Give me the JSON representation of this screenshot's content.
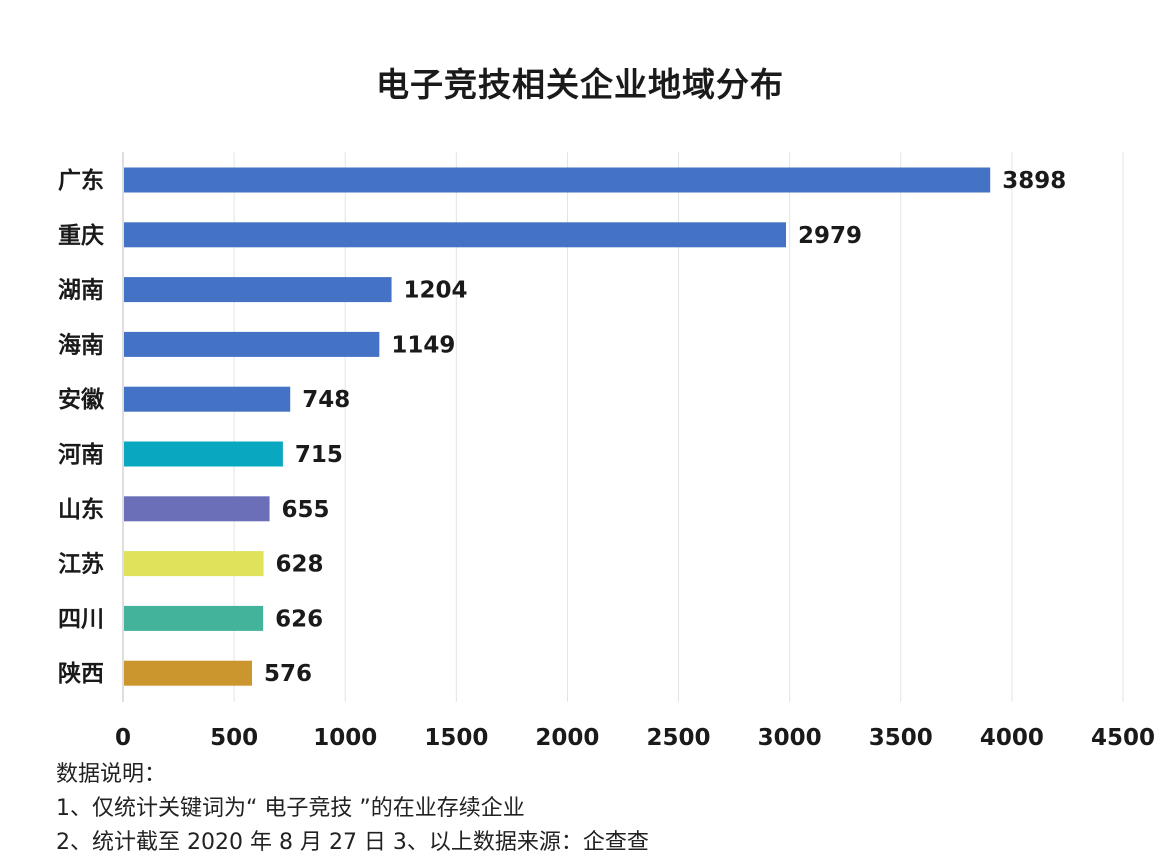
{
  "chart_data": {
    "type": "bar",
    "orientation": "horizontal",
    "title": "电子竞技相关企业地域分布",
    "categories": [
      "广东",
      "重庆",
      "湖南",
      "海南",
      "安徽",
      "河南",
      "山东",
      "江苏",
      "四川",
      "陕西"
    ],
    "values": [
      3898,
      2979,
      1204,
      1149,
      748,
      715,
      655,
      628,
      626,
      576
    ],
    "colors": [
      "#4472c4",
      "#4472c4",
      "#4472c4",
      "#4472c4",
      "#4472c4",
      "#0aa7c0",
      "#6b6fb8",
      "#dfe25a",
      "#44b39b",
      "#cc962e"
    ],
    "xlim": [
      0,
      4500
    ],
    "xticks": [
      0,
      500,
      1000,
      1500,
      2000,
      2500,
      3000,
      3500,
      4000,
      4500
    ],
    "grid": true,
    "xlabel": "",
    "ylabel": ""
  },
  "notes": {
    "heading": "数据说明：",
    "line1": "1、仅统计关键词为“ 电子竞技 ”的在业存续企业",
    "line2": "2、统计截至 2020 年 8 月 27 日  3、以上数据来源：企查查"
  }
}
